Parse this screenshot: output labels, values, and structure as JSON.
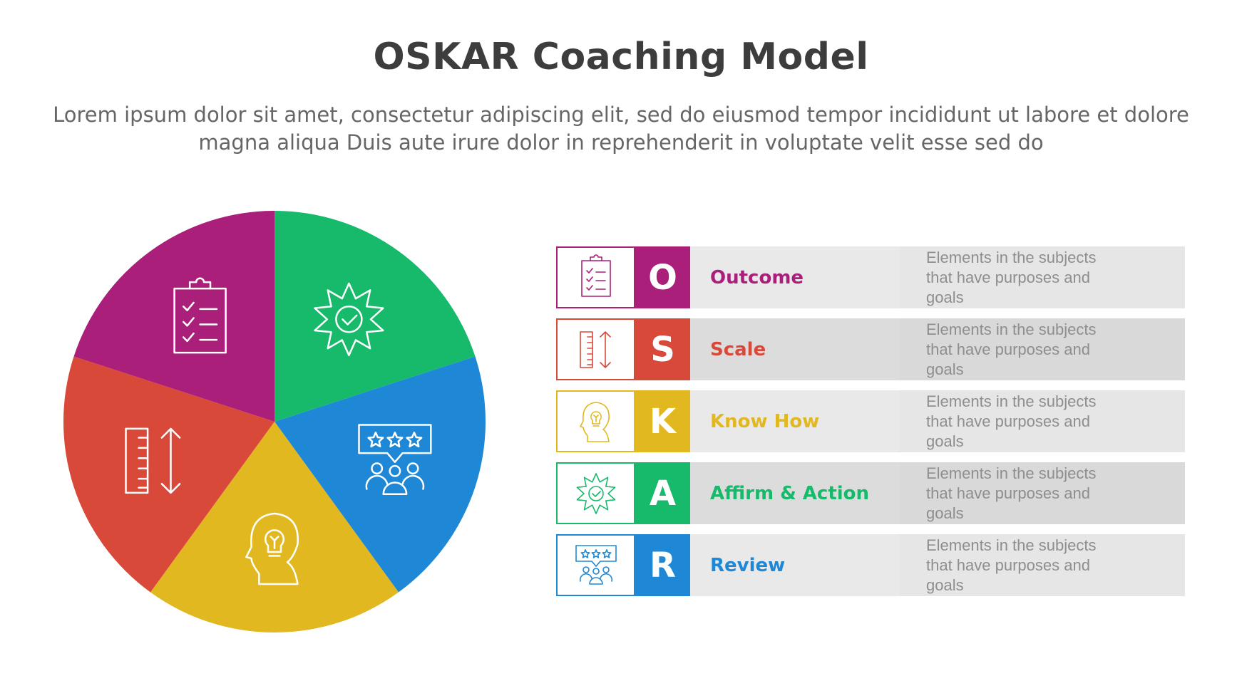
{
  "title": "OSKAR Coaching Model",
  "subtitle": "Lorem ipsum dolor sit amet, consectetur adipiscing elit, sed do eiusmod tempor incididunt ut labore et dolore magna aliqua Duis aute irure dolor in reprehenderit in voluptate velit esse sed do",
  "items": [
    {
      "letter": "O",
      "label": "Outcome",
      "description": "Elements in the subjects that have purposes and goals",
      "color": "#a91f7a",
      "icon": "clipboard-checklist-icon",
      "bg_mid": "#e9e9e9",
      "bg_desc": "#e6e6e6"
    },
    {
      "letter": "S",
      "label": "Scale",
      "description": "Elements in the subjects that have purposes and goals",
      "color": "#d9493a",
      "icon": "ruler-scale-icon",
      "bg_mid": "#dcdcdc",
      "bg_desc": "#d9d9d9"
    },
    {
      "letter": "K",
      "label": "Know How",
      "description": "Elements in the subjects that have purposes and goals",
      "color": "#e2b820",
      "icon": "head-lightbulb-icon",
      "bg_mid": "#e9e9e9",
      "bg_desc": "#e6e6e6"
    },
    {
      "letter": "A",
      "label": "Affirm & Action",
      "description": "Elements in the subjects that have purposes and goals",
      "color": "#17b96b",
      "icon": "badge-check-icon",
      "bg_mid": "#dcdcdc",
      "bg_desc": "#d9d9d9"
    },
    {
      "letter": "R",
      "label": "Review",
      "description": "Elements in the subjects that have purposes and goals",
      "color": "#1e88d6",
      "icon": "rating-group-icon",
      "bg_mid": "#e9e9e9",
      "bg_desc": "#e6e6e6"
    }
  ],
  "pie_order": [
    "A",
    "R",
    "K",
    "S",
    "O"
  ]
}
